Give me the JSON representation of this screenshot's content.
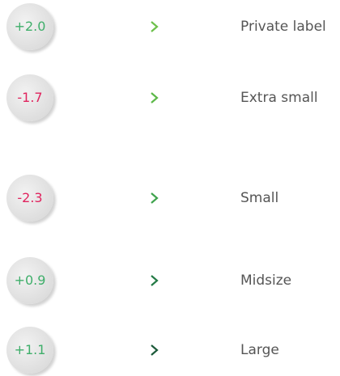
{
  "rows": [
    {
      "value": "+2.0",
      "value_color": "#3fae6a",
      "chevron_color": "#6cc04a",
      "label": "Private label"
    },
    {
      "value": "-1.7",
      "value_color": "#e0245e",
      "chevron_color": "#5cb848",
      "label": "Extra small"
    },
    {
      "value": "-2.3",
      "value_color": "#e0245e",
      "chevron_color": "#3fa34d",
      "label": "Small"
    },
    {
      "value": "+0.9",
      "value_color": "#3fae6a",
      "chevron_color": "#237a45",
      "label": "Midsize"
    },
    {
      "value": "+1.1",
      "value_color": "#3fae6a",
      "chevron_color": "#1c5a3a",
      "label": "Large"
    }
  ]
}
